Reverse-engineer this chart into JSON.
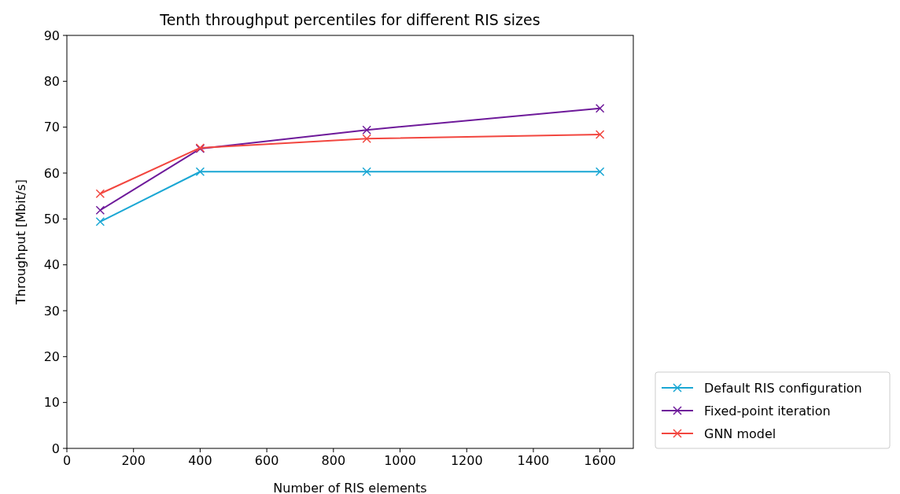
{
  "chart_data": {
    "type": "line",
    "title": "Tenth throughput percentiles for different RIS sizes",
    "xlabel": "Number of RIS elements",
    "ylabel": "Throughput [Mbit/s]",
    "x": [
      100,
      400,
      900,
      1600
    ],
    "series": [
      {
        "name": "Default RIS configuration",
        "color": "#1aa7d4",
        "values": [
          49.4,
          60.3,
          60.3,
          60.3
        ]
      },
      {
        "name": "Fixed-point iteration",
        "color": "#6e1a9a",
        "values": [
          51.9,
          65.3,
          69.4,
          74.1
        ]
      },
      {
        "name": "GNN model",
        "color": "#f2463f",
        "values": [
          55.5,
          65.5,
          67.5,
          68.4
        ]
      }
    ],
    "xlim": [
      0,
      1700
    ],
    "xticks": [
      0,
      200,
      400,
      600,
      800,
      1000,
      1200,
      1400,
      1600
    ],
    "ylim": [
      0,
      90
    ],
    "yticks": [
      0,
      10,
      20,
      30,
      40,
      50,
      60,
      70,
      80,
      90
    ],
    "grid": false,
    "legend": "right",
    "marker": "cross",
    "line_style": "solid"
  }
}
